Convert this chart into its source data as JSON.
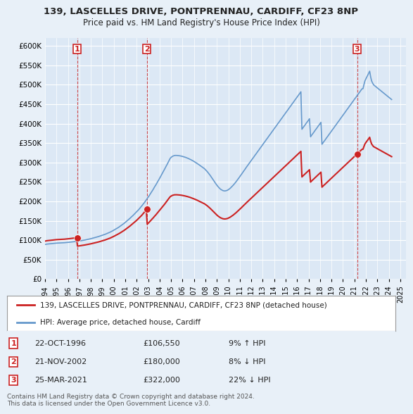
{
  "title1": "139, LASCELLES DRIVE, PONTPRENNAU, CARDIFF, CF23 8NP",
  "title2": "Price paid vs. HM Land Registry's House Price Index (HPI)",
  "ylabel": "",
  "ylim": [
    0,
    620000
  ],
  "yticks": [
    0,
    50000,
    100000,
    150000,
    200000,
    250000,
    300000,
    350000,
    400000,
    450000,
    500000,
    550000,
    600000
  ],
  "ytick_labels": [
    "£0",
    "£50K",
    "£100K",
    "£150K",
    "£200K",
    "£250K",
    "£300K",
    "£350K",
    "£400K",
    "£450K",
    "£500K",
    "£550K",
    "£600K"
  ],
  "xlim_start": 1994.0,
  "xlim_end": 2025.5,
  "bg_color": "#e8f0f8",
  "plot_bg": "#dce8f5",
  "grid_color": "#ffffff",
  "hpi_color": "#6699cc",
  "price_color": "#cc2222",
  "sale_marker_color": "#cc2222",
  "vline_color": "#cc2222",
  "legend_label_price": "139, LASCELLES DRIVE, PONTPRENNAU, CARDIFF, CF23 8NP (detached house)",
  "legend_label_hpi": "HPI: Average price, detached house, Cardiff",
  "footnote": "Contains HM Land Registry data © Crown copyright and database right 2024.\nThis data is licensed under the Open Government Licence v3.0.",
  "sales": [
    {
      "num": 1,
      "date_dec": 1996.81,
      "price": 106550,
      "label": "22-OCT-1996",
      "price_str": "£106,550",
      "hpi_rel": "9% ↑ HPI"
    },
    {
      "num": 2,
      "date_dec": 2002.9,
      "price": 180000,
      "label": "21-NOV-2002",
      "price_str": "£180,000",
      "hpi_rel": "8% ↓ HPI"
    },
    {
      "num": 3,
      "date_dec": 2021.24,
      "price": 322000,
      "label": "25-MAR-2021",
      "price_str": "£322,000",
      "hpi_rel": "22% ↓ HPI"
    }
  ],
  "hpi_dates": [
    1994.0,
    1994.08,
    1994.17,
    1994.25,
    1994.33,
    1994.42,
    1994.5,
    1994.58,
    1994.67,
    1994.75,
    1994.83,
    1994.92,
    1995.0,
    1995.08,
    1995.17,
    1995.25,
    1995.33,
    1995.42,
    1995.5,
    1995.58,
    1995.67,
    1995.75,
    1995.83,
    1995.92,
    1996.0,
    1996.08,
    1996.17,
    1996.25,
    1996.33,
    1996.42,
    1996.5,
    1996.58,
    1996.67,
    1996.75,
    1996.83,
    1996.92,
    1997.0,
    1997.08,
    1997.17,
    1997.25,
    1997.33,
    1997.42,
    1997.5,
    1997.58,
    1997.67,
    1997.75,
    1997.83,
    1997.92,
    1998.0,
    1998.08,
    1998.17,
    1998.25,
    1998.33,
    1998.42,
    1998.5,
    1998.58,
    1998.67,
    1998.75,
    1998.83,
    1998.92,
    1999.0,
    1999.08,
    1999.17,
    1999.25,
    1999.33,
    1999.42,
    1999.5,
    1999.58,
    1999.67,
    1999.75,
    1999.83,
    1999.92,
    2000.0,
    2000.08,
    2000.17,
    2000.25,
    2000.33,
    2000.42,
    2000.5,
    2000.58,
    2000.67,
    2000.75,
    2000.83,
    2000.92,
    2001.0,
    2001.08,
    2001.17,
    2001.25,
    2001.33,
    2001.42,
    2001.5,
    2001.58,
    2001.67,
    2001.75,
    2001.83,
    2001.92,
    2002.0,
    2002.08,
    2002.17,
    2002.25,
    2002.33,
    2002.42,
    2002.5,
    2002.58,
    2002.67,
    2002.75,
    2002.83,
    2002.92,
    2003.0,
    2003.08,
    2003.17,
    2003.25,
    2003.33,
    2003.42,
    2003.5,
    2003.58,
    2003.67,
    2003.75,
    2003.83,
    2003.92,
    2004.0,
    2004.08,
    2004.17,
    2004.25,
    2004.33,
    2004.42,
    2004.5,
    2004.58,
    2004.67,
    2004.75,
    2004.83,
    2004.92,
    2005.0,
    2005.08,
    2005.17,
    2005.25,
    2005.33,
    2005.42,
    2005.5,
    2005.58,
    2005.67,
    2005.75,
    2005.83,
    2005.92,
    2006.0,
    2006.08,
    2006.17,
    2006.25,
    2006.33,
    2006.42,
    2006.5,
    2006.58,
    2006.67,
    2006.75,
    2006.83,
    2006.92,
    2007.0,
    2007.08,
    2007.17,
    2007.25,
    2007.33,
    2007.42,
    2007.5,
    2007.58,
    2007.67,
    2007.75,
    2007.83,
    2007.92,
    2008.0,
    2008.08,
    2008.17,
    2008.25,
    2008.33,
    2008.42,
    2008.5,
    2008.58,
    2008.67,
    2008.75,
    2008.83,
    2008.92,
    2009.0,
    2009.08,
    2009.17,
    2009.25,
    2009.33,
    2009.42,
    2009.5,
    2009.58,
    2009.67,
    2009.75,
    2009.83,
    2009.92,
    2010.0,
    2010.08,
    2010.17,
    2010.25,
    2010.33,
    2010.42,
    2010.5,
    2010.58,
    2010.67,
    2010.75,
    2010.83,
    2010.92,
    2011.0,
    2011.08,
    2011.17,
    2011.25,
    2011.33,
    2011.42,
    2011.5,
    2011.58,
    2011.67,
    2011.75,
    2011.83,
    2011.92,
    2012.0,
    2012.08,
    2012.17,
    2012.25,
    2012.33,
    2012.42,
    2012.5,
    2012.58,
    2012.67,
    2012.75,
    2012.83,
    2012.92,
    2013.0,
    2013.08,
    2013.17,
    2013.25,
    2013.33,
    2013.42,
    2013.5,
    2013.58,
    2013.67,
    2013.75,
    2013.83,
    2013.92,
    2014.0,
    2014.08,
    2014.17,
    2014.25,
    2014.33,
    2014.42,
    2014.5,
    2014.58,
    2014.67,
    2014.75,
    2014.83,
    2014.92,
    2015.0,
    2015.08,
    2015.17,
    2015.25,
    2015.33,
    2015.42,
    2015.5,
    2015.58,
    2015.67,
    2015.75,
    2015.83,
    2015.92,
    2016.0,
    2016.08,
    2016.17,
    2016.25,
    2016.33,
    2016.42,
    2016.5,
    2016.58,
    2016.67,
    2016.75,
    2016.83,
    2016.92,
    2017.0,
    2017.08,
    2017.17,
    2017.25,
    2017.33,
    2017.42,
    2017.5,
    2017.58,
    2017.67,
    2017.75,
    2017.83,
    2017.92,
    2018.0,
    2018.08,
    2018.17,
    2018.25,
    2018.33,
    2018.42,
    2018.5,
    2018.58,
    2018.67,
    2018.75,
    2018.83,
    2018.92,
    2019.0,
    2019.08,
    2019.17,
    2019.25,
    2019.33,
    2019.42,
    2019.5,
    2019.58,
    2019.67,
    2019.75,
    2019.83,
    2019.92,
    2020.0,
    2020.08,
    2020.17,
    2020.25,
    2020.33,
    2020.42,
    2020.5,
    2020.58,
    2020.67,
    2020.75,
    2020.83,
    2020.92,
    2021.0,
    2021.08,
    2021.17,
    2021.25,
    2021.33,
    2021.42,
    2021.5,
    2021.58,
    2021.67,
    2021.75,
    2021.83,
    2021.92,
    2022.0,
    2022.08,
    2022.17,
    2022.25,
    2022.33,
    2022.42,
    2022.5,
    2022.58,
    2022.67,
    2022.75,
    2022.83,
    2022.92,
    2023.0,
    2023.08,
    2023.17,
    2023.25,
    2023.33,
    2023.42,
    2023.5,
    2023.58,
    2023.67,
    2023.75,
    2023.83,
    2023.92,
    2024.0,
    2024.08,
    2024.17,
    2024.25
  ],
  "hpi_values": [
    89000,
    89500,
    90000,
    90200,
    90500,
    90700,
    91000,
    91200,
    91500,
    91800,
    92000,
    92300,
    92500,
    92600,
    92700,
    92800,
    92900,
    93000,
    93200,
    93400,
    93500,
    93700,
    93900,
    94100,
    94300,
    94600,
    94900,
    95200,
    95500,
    95700,
    96000,
    96300,
    96600,
    96900,
    97200,
    97500,
    97900,
    98300,
    98700,
    99100,
    99600,
    100100,
    100600,
    101100,
    101600,
    102100,
    102700,
    103300,
    103900,
    104600,
    105200,
    105900,
    106600,
    107300,
    108000,
    108700,
    109400,
    110200,
    111000,
    111800,
    112600,
    113500,
    114400,
    115300,
    116300,
    117300,
    118400,
    119500,
    120600,
    121800,
    123100,
    124400,
    125800,
    127200,
    128600,
    130000,
    131500,
    133100,
    134800,
    136500,
    138200,
    140000,
    141900,
    143800,
    145800,
    147900,
    150000,
    152100,
    154300,
    156500,
    158800,
    161100,
    163400,
    165800,
    168200,
    170700,
    173200,
    175800,
    178500,
    181300,
    184200,
    187200,
    190300,
    193500,
    196700,
    200000,
    203400,
    206900,
    210500,
    214200,
    218000,
    221900,
    225900,
    229900,
    234000,
    238100,
    242200,
    246400,
    250600,
    254900,
    259200,
    263600,
    268000,
    272500,
    277100,
    281700,
    286400,
    291100,
    295900,
    300700,
    305600,
    310500,
    313000,
    315000,
    316500,
    317500,
    318000,
    318200,
    318100,
    317900,
    317600,
    317200,
    316800,
    316200,
    315600,
    314900,
    314100,
    313300,
    312400,
    311400,
    310400,
    309300,
    308100,
    306800,
    305500,
    304100,
    302700,
    301200,
    299600,
    298000,
    296300,
    294600,
    292900,
    291100,
    289300,
    287500,
    285700,
    283900,
    281500,
    278900,
    276100,
    273100,
    269900,
    266500,
    263000,
    259300,
    255600,
    251900,
    248300,
    244800,
    241500,
    238400,
    235600,
    233100,
    231000,
    229300,
    228000,
    227200,
    226800,
    227000,
    227600,
    228600,
    230000,
    231800,
    233900,
    236200,
    238700,
    241400,
    244200,
    247200,
    250300,
    253500,
    256800,
    260200,
    263600,
    267100,
    270600,
    274100,
    277600,
    281100,
    284600,
    288100,
    291600,
    295000,
    298400,
    301800,
    305200,
    308600,
    312000,
    315400,
    318800,
    322200,
    325600,
    329000,
    332400,
    335800,
    339200,
    342600,
    346000,
    349400,
    352800,
    356200,
    359600,
    363000,
    366400,
    369800,
    373200,
    376600,
    380000,
    383400,
    386800,
    390200,
    393600,
    397000,
    400400,
    403800,
    407200,
    410600,
    414000,
    417400,
    420800,
    424200,
    427600,
    431000,
    434400,
    437800,
    441200,
    444600,
    448000,
    451400,
    454800,
    458200,
    461600,
    465000,
    468400,
    471800,
    475200,
    478600,
    482000,
    385400,
    388800,
    392200,
    395600,
    399000,
    402400,
    405800,
    409200,
    412600,
    366000,
    369400,
    372800,
    376200,
    379600,
    383000,
    386400,
    389800,
    393200,
    396600,
    400000,
    403400,
    346800,
    350200,
    353600,
    357000,
    360400,
    363800,
    367200,
    370600,
    374000,
    377400,
    380800,
    384200,
    387600,
    391000,
    394400,
    397800,
    401200,
    404600,
    408000,
    411400,
    414800,
    418200,
    421600,
    425000,
    428400,
    431800,
    435200,
    438600,
    442000,
    445400,
    448800,
    452200,
    455600,
    459000,
    462400,
    465800,
    469200,
    472600,
    476000,
    479400,
    482800,
    486200,
    489600,
    490000,
    500000,
    510000,
    515000,
    520000,
    525000,
    530000,
    535000,
    520000,
    510000,
    505000,
    500000,
    498000,
    496000,
    494000,
    492000,
    490000,
    488000,
    486000,
    484000,
    482000,
    480000,
    478000,
    476000,
    474000,
    472000,
    470000,
    468000,
    466000,
    464000,
    462000,
    460000,
    458000
  ]
}
